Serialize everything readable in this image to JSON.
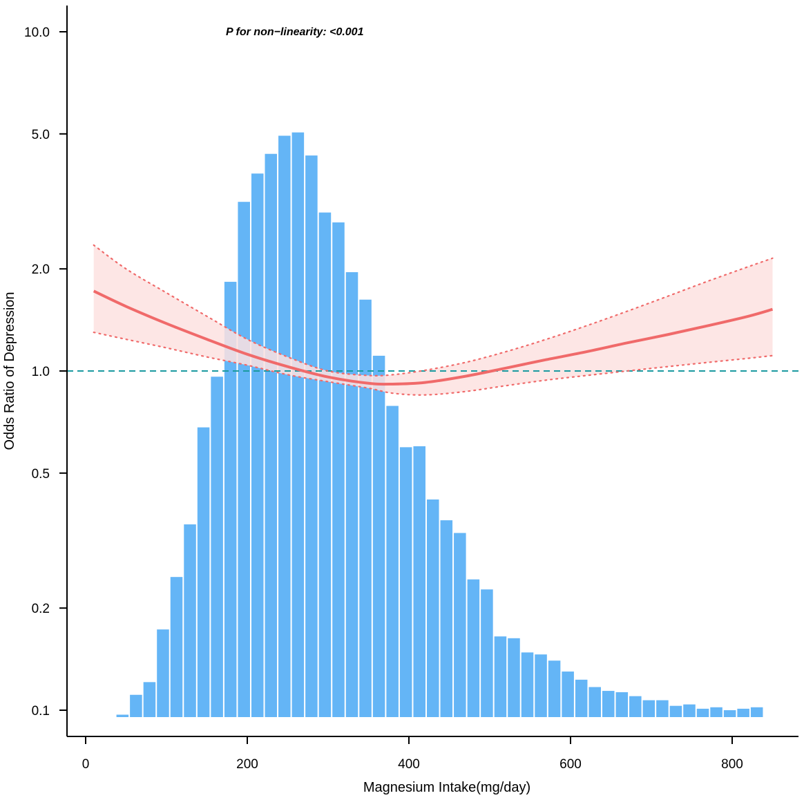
{
  "chart_data": {
    "type": "bar",
    "title": "",
    "xlabel": "Magnesium Intake(mg/day)",
    "ylabel": "Odds Ratio of Depression",
    "annotation": "P for non−linearity: <0.001",
    "y_scale": "log",
    "xlim": [
      -30,
      880
    ],
    "ylim": [
      0.08,
      13.0
    ],
    "x_ticks": [
      {
        "value": 0,
        "label": "0"
      },
      {
        "value": 200,
        "label": "200"
      },
      {
        "value": 400,
        "label": "400"
      },
      {
        "value": 600,
        "label": "600"
      },
      {
        "value": 800,
        "label": "800"
      }
    ],
    "y_ticks": [
      {
        "value": 0.1,
        "label": "0.1"
      },
      {
        "value": 0.2,
        "label": "0.2"
      },
      {
        "value": 0.5,
        "label": "0.5"
      },
      {
        "value": 1.0,
        "label": "1.0"
      },
      {
        "value": 2.0,
        "label": "2.0"
      },
      {
        "value": 5.0,
        "label": "5.0"
      },
      {
        "value": 10.0,
        "label": "10.0"
      }
    ],
    "reference_line": {
      "y": 1.0,
      "color": "#1a9aa0",
      "style": "dashed"
    },
    "histogram": {
      "color": "#64b5f6",
      "bin_width": 16.7,
      "x": [
        45.6,
        62.3,
        79.0,
        95.7,
        112.4,
        129.1,
        145.8,
        162.5,
        179.2,
        195.9,
        212.6,
        229.3,
        246.0,
        262.7,
        279.4,
        296.1,
        312.8,
        329.5,
        346.2,
        362.9,
        379.6,
        396.3,
        413.0,
        429.7,
        446.4,
        463.1,
        479.8,
        496.5,
        513.2,
        529.9,
        546.6,
        563.3,
        580.0,
        596.7,
        613.4,
        630.1,
        646.8,
        663.5,
        680.2,
        696.9,
        713.6,
        730.3,
        747.0,
        763.7,
        780.4,
        797.1,
        813.8,
        830.5
      ],
      "heights": [
        0.097,
        0.111,
        0.121,
        0.173,
        0.247,
        0.353,
        0.682,
        0.962,
        1.832,
        3.152,
        3.82,
        4.366,
        4.938,
        5.05,
        4.318,
        2.932,
        2.742,
        1.956,
        1.623,
        1.109,
        0.789,
        0.596,
        0.6,
        0.418,
        0.363,
        0.333,
        0.243,
        0.227,
        0.165,
        0.163,
        0.148,
        0.146,
        0.14,
        0.13,
        0.123,
        0.117,
        0.114,
        0.113,
        0.11,
        0.107,
        0.107,
        0.103,
        0.104,
        0.101,
        0.102,
        0.1,
        0.101,
        0.102
      ]
    },
    "series": [
      {
        "kind": "estimate",
        "color": "#f06a6a",
        "x": [
          10,
          50,
          100,
          150,
          200,
          250,
          300,
          350,
          380,
          420,
          470,
          520,
          570,
          620,
          670,
          720,
          770,
          820,
          850
        ],
        "y": [
          1.72,
          1.55,
          1.38,
          1.24,
          1.12,
          1.03,
          0.96,
          0.92,
          0.915,
          0.925,
          0.965,
          1.02,
          1.08,
          1.14,
          1.21,
          1.28,
          1.36,
          1.45,
          1.52
        ]
      },
      {
        "kind": "upper_ci",
        "color": "#f06a6a",
        "x": [
          10,
          50,
          100,
          150,
          200,
          250,
          300,
          350,
          380,
          420,
          470,
          520,
          570,
          620,
          670,
          720,
          770,
          820,
          850
        ],
        "y": [
          2.35,
          2.0,
          1.7,
          1.45,
          1.24,
          1.1,
          1.0,
          0.97,
          0.975,
          1.005,
          1.06,
          1.14,
          1.24,
          1.36,
          1.5,
          1.66,
          1.84,
          2.03,
          2.15
        ]
      },
      {
        "kind": "lower_ci",
        "color": "#f06a6a",
        "x": [
          10,
          50,
          100,
          150,
          200,
          250,
          300,
          350,
          380,
          420,
          470,
          520,
          570,
          620,
          670,
          720,
          770,
          820,
          850
        ],
        "y": [
          1.3,
          1.24,
          1.17,
          1.1,
          1.04,
          0.975,
          0.93,
          0.89,
          0.86,
          0.85,
          0.87,
          0.905,
          0.94,
          0.97,
          1.0,
          1.03,
          1.06,
          1.09,
          1.11
        ]
      }
    ],
    "band_color": "#fde2e0"
  }
}
